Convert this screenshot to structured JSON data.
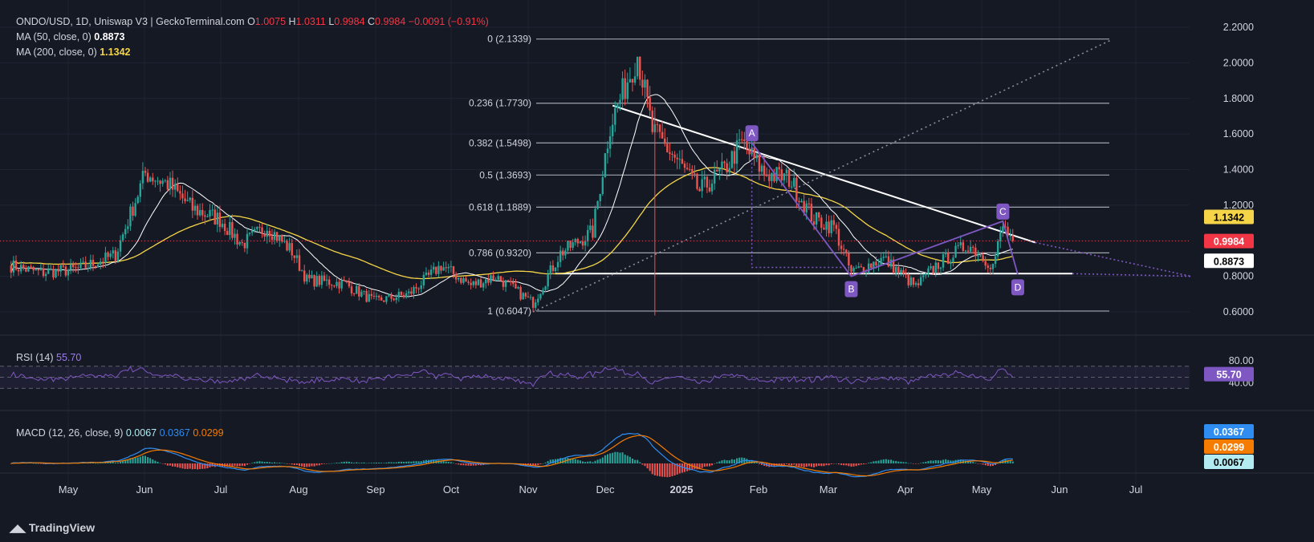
{
  "header": {
    "symbol": "ONDO/USD, 1D, Uniswap V3 | GeckoTerminal.com",
    "o_label": "O",
    "o_value": "1.0075",
    "h_label": "H",
    "h_value": "1.0311",
    "l_label": "L",
    "l_value": "0.9984",
    "c_label": "C",
    "c_value": "0.9984",
    "change": "−0.0091 (−0.91%)"
  },
  "indicators": {
    "ma50_label": "MA (50, close, 0)",
    "ma50_value": "0.8873",
    "ma200_label": "MA (200, close, 0)",
    "ma200_value": "1.1342",
    "rsi_label": "RSI (14)",
    "rsi_value": "55.70",
    "macd_label": "MACD (12, 26, close, 9)",
    "macd_value": "0.0067",
    "macd_signal": "0.0367",
    "macd_hist": "0.0299"
  },
  "branding": {
    "logo_text": "TradingView"
  },
  "colors": {
    "background": "#151924",
    "up": "#26a69a",
    "down": "#ef5350",
    "ma50": "#ffffff",
    "ma200": "#f5d547",
    "rsi": "#7e57c2",
    "macd": "#2f8cf0",
    "signal": "#f57c00",
    "pattern": "#7e57c2",
    "price_tag": "#f23645"
  },
  "chart_data": {
    "type": "candlestick",
    "title": "ONDO/USD, 1D, Uniswap V3 | GeckoTerminal.com",
    "x_ticks": [
      "May",
      "Jun",
      "Jul",
      "Aug",
      "Sep",
      "Oct",
      "Nov",
      "Dec",
      "2025",
      "Feb",
      "Mar",
      "Apr",
      "May",
      "Jun",
      "Jul"
    ],
    "y_ticks": [
      "0.6000",
      "0.8000",
      "1.0000",
      "1.2000",
      "1.4000",
      "1.6000",
      "1.8000",
      "2.0000",
      "2.2000"
    ],
    "ylim": [
      0.55,
      2.25
    ],
    "last_close": "0.9984",
    "price_path": [
      [
        "2024-04-08",
        0.86
      ],
      [
        "2024-04-20",
        0.82
      ],
      [
        "2024-05-05",
        0.84
      ],
      [
        "2024-05-20",
        0.92
      ],
      [
        "2024-06-01",
        1.38
      ],
      [
        "2024-06-10",
        1.32
      ],
      [
        "2024-06-20",
        1.18
      ],
      [
        "2024-07-01",
        1.12
      ],
      [
        "2024-07-10",
        0.98
      ],
      [
        "2024-07-20",
        1.08
      ],
      [
        "2024-07-30",
        0.94
      ],
      [
        "2024-08-05",
        0.78
      ],
      [
        "2024-08-20",
        0.76
      ],
      [
        "2024-09-01",
        0.66
      ],
      [
        "2024-09-15",
        0.7
      ],
      [
        "2024-09-28",
        0.86
      ],
      [
        "2024-10-10",
        0.75
      ],
      [
        "2024-10-20",
        0.8
      ],
      [
        "2024-11-04",
        0.65
      ],
      [
        "2024-11-15",
        0.93
      ],
      [
        "2024-11-28",
        1.05
      ],
      [
        "2024-12-05",
        1.65
      ],
      [
        "2024-12-16",
        2.05
      ],
      [
        "2024-12-22",
        1.62
      ],
      [
        "2025-01-01",
        1.45
      ],
      [
        "2025-01-10",
        1.28
      ],
      [
        "2025-01-20",
        1.4
      ],
      [
        "2025-01-27",
        1.55
      ],
      [
        "2025-02-05",
        1.38
      ],
      [
        "2025-02-15",
        1.35
      ],
      [
        "2025-02-25",
        1.12
      ],
      [
        "2025-03-05",
        1.08
      ],
      [
        "2025-03-12",
        0.82
      ],
      [
        "2025-03-25",
        0.9
      ],
      [
        "2025-04-07",
        0.74
      ],
      [
        "2025-04-15",
        0.86
      ],
      [
        "2025-04-28",
        0.98
      ],
      [
        "2025-05-08",
        0.86
      ],
      [
        "2025-05-12",
        1.08
      ],
      [
        "2025-05-16",
        0.9984
      ]
    ],
    "fib_levels": [
      {
        "label": "0 (2.1339)",
        "value": 2.1339
      },
      {
        "label": "0.236 (1.7730)",
        "value": 1.773
      },
      {
        "label": "0.382 (1.5498)",
        "value": 1.5498
      },
      {
        "label": "0.5 (1.3693)",
        "value": 1.3693
      },
      {
        "label": "0.618 (1.1889)",
        "value": 1.1889
      },
      {
        "label": "0.786 (0.9320)",
        "value": 0.932
      },
      {
        "label": "1 (0.6047)",
        "value": 0.6047
      }
    ],
    "pattern_points": [
      {
        "label": "A",
        "date": "2025-01-31",
        "value": 1.55
      },
      {
        "label": "B",
        "date": "2025-03-12",
        "value": 0.8
      },
      {
        "label": "C",
        "date": "2025-05-12",
        "value": 1.11
      },
      {
        "label": "D",
        "date": "2025-05-18",
        "value": 0.81
      }
    ],
    "ma50_last": "0.8873",
    "ma200_last": "1.1342",
    "rsi": {
      "last": "55.70",
      "levels": [
        "80.00",
        "40.00"
      ]
    },
    "macd": {
      "macd": "0.0067",
      "signal": "0.0367",
      "histogram": "0.0299"
    }
  }
}
